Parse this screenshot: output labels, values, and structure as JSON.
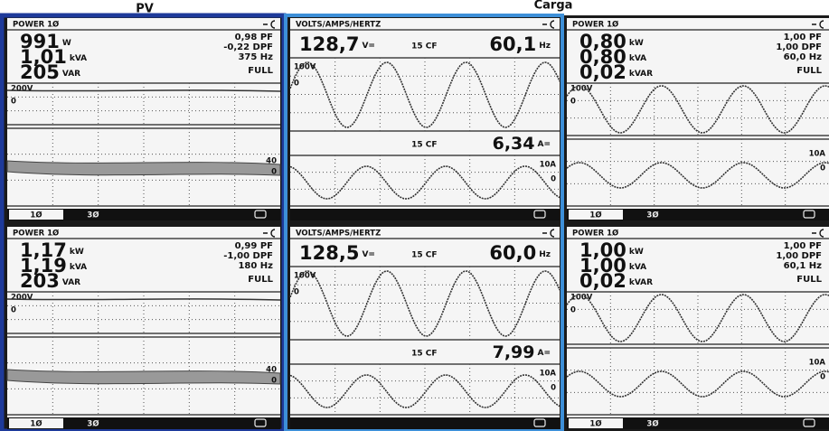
{
  "labels": {
    "pv": "PV",
    "carga": "Carga"
  },
  "panels": [
    {
      "header": "POWER 1Ø",
      "readings": [
        {
          "value": "991",
          "unit": "W"
        },
        {
          "value": "1,01",
          "unit": "kVA"
        },
        {
          "value": "205",
          "unit": "VAR"
        }
      ],
      "side": [
        "0,98 PF",
        "-0,22 DPF",
        "375 Hz",
        "FULL"
      ],
      "scale_top": [
        "200V",
        "0"
      ],
      "scale_bottom": [
        "40",
        "0"
      ],
      "tabs": [
        "1Ø",
        "3Ø"
      ]
    },
    {
      "header": "VOLTS/AMPS/HERTZ",
      "voltage": {
        "value": "128,7",
        "unit": "V="
      },
      "cf_v": "15 CF",
      "frequency": {
        "value": "60,1",
        "unit": "Hz"
      },
      "scale_top": [
        "100V",
        "0"
      ],
      "cf_a": "15 CF",
      "current": {
        "value": "6,34",
        "unit": "A="
      },
      "scale_bottom": [
        "10A",
        "0"
      ]
    },
    {
      "header": "POWER 1Ø",
      "readings": [
        {
          "value": "0,80",
          "unit": "kW"
        },
        {
          "value": "0,80",
          "unit": "kVA"
        },
        {
          "value": "0,02",
          "unit": "kVAR"
        }
      ],
      "side": [
        "1,00 PF",
        "1,00 DPF",
        "60,0 Hz",
        "FULL"
      ],
      "scale_top": [
        "100V",
        "0"
      ],
      "scale_bottom": [
        "10A",
        "0"
      ],
      "tabs": [
        "1Ø",
        "3Ø"
      ]
    },
    {
      "header": "POWER 1Ø",
      "readings": [
        {
          "value": "1,17",
          "unit": "kW"
        },
        {
          "value": "1,19",
          "unit": "kVA"
        },
        {
          "value": "203",
          "unit": "VAR"
        }
      ],
      "side": [
        "0,99 PF",
        "-1,00 DPF",
        "180 Hz",
        "FULL"
      ],
      "scale_top": [
        "200V",
        "0"
      ],
      "scale_bottom": [
        "40",
        "0"
      ],
      "tabs": [
        "1Ø",
        "3Ø"
      ]
    },
    {
      "header": "VOLTS/AMPS/HERTZ",
      "voltage": {
        "value": "128,5",
        "unit": "V="
      },
      "cf_v": "15 CF",
      "frequency": {
        "value": "60,0",
        "unit": "Hz"
      },
      "scale_top": [
        "100V",
        "0"
      ],
      "cf_a": "15 CF",
      "current": {
        "value": "7,99",
        "unit": "A="
      },
      "scale_bottom": [
        "10A",
        "0"
      ]
    },
    {
      "header": "POWER 1Ø",
      "readings": [
        {
          "value": "1,00",
          "unit": "kW"
        },
        {
          "value": "1,00",
          "unit": "kVA"
        },
        {
          "value": "0,02",
          "unit": "kVAR"
        }
      ],
      "side": [
        "1,00 PF",
        "1,00 DPF",
        "60,1 Hz",
        "FULL"
      ],
      "scale_top": [
        "100V",
        "0"
      ],
      "scale_bottom": [
        "10A",
        "0"
      ],
      "tabs": [
        "1Ø",
        "3Ø"
      ]
    }
  ]
}
